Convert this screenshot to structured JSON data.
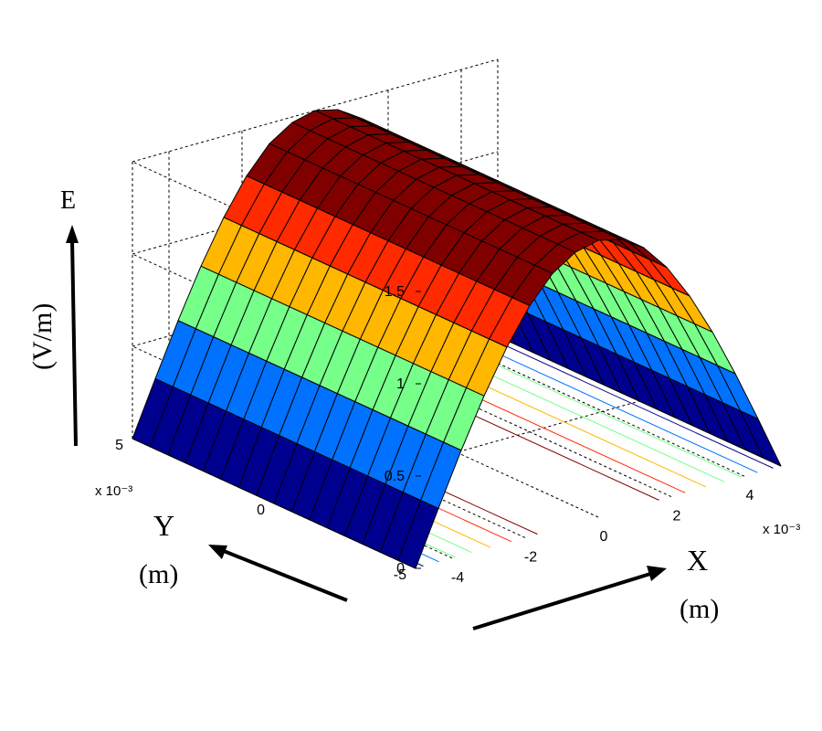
{
  "chart_data": {
    "type": "surface",
    "title": "",
    "zlabel": "E",
    "zunit": "(V/m)",
    "xlabel": "X",
    "xunit": "(m)",
    "ylabel": "Y",
    "yunit": "(m)",
    "x_multiplier": "x 10⁻³",
    "y_multiplier": "x 10⁻³",
    "xlim": [
      -5,
      5
    ],
    "ylim": [
      -5,
      5
    ],
    "zlim": [
      0,
      1.5
    ],
    "x_ticks": [
      "-4",
      "-2",
      "0",
      "2",
      "4"
    ],
    "y_ticks": [
      "-5",
      "0",
      "5"
    ],
    "z_ticks": [
      "0",
      "0.5",
      "1",
      "1.5"
    ],
    "grid": true,
    "contour_on_floor": true,
    "surface": {
      "description_of_data": "E(x) = 1.5*cos(pi*x/a), constant along y",
      "x": [
        -5,
        -4.375,
        -3.75,
        -3.125,
        -2.5,
        -1.875,
        -1.25,
        -0.625,
        0,
        0.625,
        1.25,
        1.875,
        2.5,
        3.125,
        3.75,
        4.375,
        5
      ],
      "y": [
        -5,
        -4.375,
        -3.75,
        -3.125,
        -2.5,
        -1.875,
        -1.25,
        -0.625,
        0,
        0.625,
        1.25,
        1.875,
        2.5,
        3.125,
        3.75,
        4.375,
        5
      ],
      "E_vs_x": [
        0.0,
        0.29,
        0.57,
        0.83,
        1.06,
        1.25,
        1.39,
        1.47,
        1.5,
        1.47,
        1.39,
        1.25,
        1.06,
        0.83,
        0.57,
        0.29,
        0.0
      ]
    },
    "colormap": [
      "#00008f",
      "#0072ff",
      "#76ff89",
      "#ffb700",
      "#ff2a00",
      "#800000"
    ]
  }
}
